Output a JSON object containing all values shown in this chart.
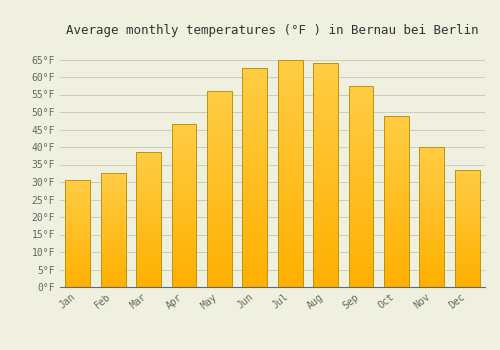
{
  "title": "Average monthly temperatures (°F ) in Bernau bei Berlin",
  "months": [
    "Jan",
    "Feb",
    "Mar",
    "Apr",
    "May",
    "Jun",
    "Jul",
    "Aug",
    "Sep",
    "Oct",
    "Nov",
    "Dec"
  ],
  "values": [
    30.5,
    32.5,
    38.5,
    46.5,
    56.0,
    62.5,
    65.0,
    64.0,
    57.5,
    49.0,
    40.0,
    33.5
  ],
  "bar_color_bottom": "#FFB000",
  "bar_color_top": "#FFCC44",
  "bar_edge_color": "#B8960A",
  "background_color": "#F0F0E0",
  "grid_color": "#CCCCBB",
  "text_color": "#666666",
  "title_color": "#333333",
  "ylim": [
    0,
    70
  ],
  "yticks": [
    0,
    5,
    10,
    15,
    20,
    25,
    30,
    35,
    40,
    45,
    50,
    55,
    60,
    65
  ],
  "ytick_labels": [
    "0°F",
    "5°F",
    "10°F",
    "15°F",
    "20°F",
    "25°F",
    "30°F",
    "35°F",
    "40°F",
    "45°F",
    "50°F",
    "55°F",
    "60°F",
    "65°F"
  ],
  "title_fontsize": 9,
  "tick_fontsize": 7,
  "bar_width": 0.7,
  "figsize": [
    5.0,
    3.5
  ],
  "dpi": 100
}
